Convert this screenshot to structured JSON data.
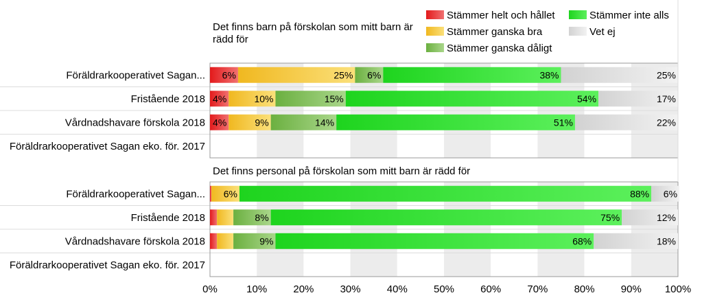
{
  "chart_data": {
    "type": "bar",
    "orientation": "horizontal",
    "stacked": true,
    "xlim": [
      0,
      100
    ],
    "x_ticks": [
      "0%",
      "10%",
      "20%",
      "30%",
      "40%",
      "50%",
      "60%",
      "70%",
      "80%",
      "90%",
      "100%"
    ],
    "legend": {
      "placement": "top-right",
      "entries": [
        {
          "name": "Stämmer helt och hållet",
          "color": "#e8222a"
        },
        {
          "name": "Stämmer ganska bra",
          "color": "#f5c12e"
        },
        {
          "name": "Stämmer ganska dåligt",
          "color": "#72b648"
        },
        {
          "name": "Stämmer inte alls",
          "color": "#22dd22"
        },
        {
          "name": "Vet ej",
          "color": "#e0e0e0"
        }
      ]
    },
    "panels": [
      {
        "title": "Det finns barn på förskolan som mitt barn är rädd för",
        "categories": [
          "Föräldrarkooperativet Sagan...",
          "Fristående 2018",
          "Vårdnadshavare förskola 2018",
          "Föräldrarkooperativet Sagan eko. för. 2017"
        ],
        "series": [
          {
            "name": "Stämmer helt och hållet",
            "values": [
              6,
              4,
              4,
              null
            ],
            "labels": [
              "6%",
              "4%",
              "4%",
              ""
            ]
          },
          {
            "name": "Stämmer ganska bra",
            "values": [
              25,
              10,
              9,
              null
            ],
            "labels": [
              "25%",
              "10%",
              "9%",
              ""
            ]
          },
          {
            "name": "Stämmer ganska dåligt",
            "values": [
              6,
              15,
              14,
              null
            ],
            "labels": [
              "6%",
              "15%",
              "14%",
              ""
            ]
          },
          {
            "name": "Stämmer inte alls",
            "values": [
              38,
              54,
              51,
              null
            ],
            "labels": [
              "38%",
              "54%",
              "51%",
              ""
            ]
          },
          {
            "name": "Vet ej",
            "values": [
              25,
              17,
              22,
              null
            ],
            "labels": [
              "25%",
              "17%",
              "22%",
              ""
            ]
          }
        ]
      },
      {
        "title": "Det finns personal på förskolan som mitt barn är rädd för",
        "categories": [
          "Föräldrarkooperativet Sagan...",
          "Fristående 2018",
          "Vårdnadshavare förskola 2018",
          "Föräldrarkooperativet Sagan eko. för. 2017"
        ],
        "series": [
          {
            "name": "Stämmer helt och hållet",
            "values": [
              0.3,
              1.5,
              1.5,
              null
            ],
            "labels": [
              "",
              "",
              "",
              ""
            ]
          },
          {
            "name": "Stämmer ganska bra",
            "values": [
              6,
              3.5,
              3.5,
              null
            ],
            "labels": [
              "6%",
              "",
              "",
              ""
            ]
          },
          {
            "name": "Stämmer ganska dåligt",
            "values": [
              0,
              8,
              9,
              null
            ],
            "labels": [
              "",
              "8%",
              "9%",
              ""
            ]
          },
          {
            "name": "Stämmer inte alls",
            "values": [
              88,
              75,
              68,
              null
            ],
            "labels": [
              "88%",
              "75%",
              "68%",
              ""
            ]
          },
          {
            "name": "Vet ej",
            "values": [
              6,
              12,
              18,
              null
            ],
            "labels": [
              "6%",
              "12%",
              "18%",
              ""
            ]
          }
        ]
      }
    ]
  }
}
